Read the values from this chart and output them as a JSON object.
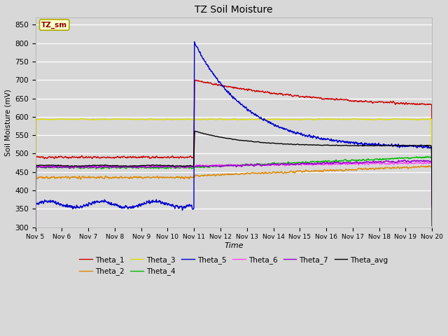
{
  "title": "TZ Soil Moisture",
  "xlabel": "Time",
  "ylabel": "Soil Moisture (mV)",
  "ylim": [
    300,
    870
  ],
  "yticks": [
    300,
    350,
    400,
    450,
    500,
    550,
    600,
    650,
    700,
    750,
    800,
    850
  ],
  "background_color": "#d8d8d8",
  "plot_bg_color": "#d8d8d8",
  "legend_label": "TZ_sm",
  "colors": {
    "Theta_1": "#cc0000",
    "Theta_2": "#dd8800",
    "Theta_3": "#dddd00",
    "Theta_4": "#00bb00",
    "Theta_5": "#0000cc",
    "Theta_6": "#ff44ff",
    "Theta_7": "#9900cc",
    "Theta_avg": "#000000"
  },
  "n_days": 15,
  "pts_per_day": 96,
  "event_day_idx": 6
}
